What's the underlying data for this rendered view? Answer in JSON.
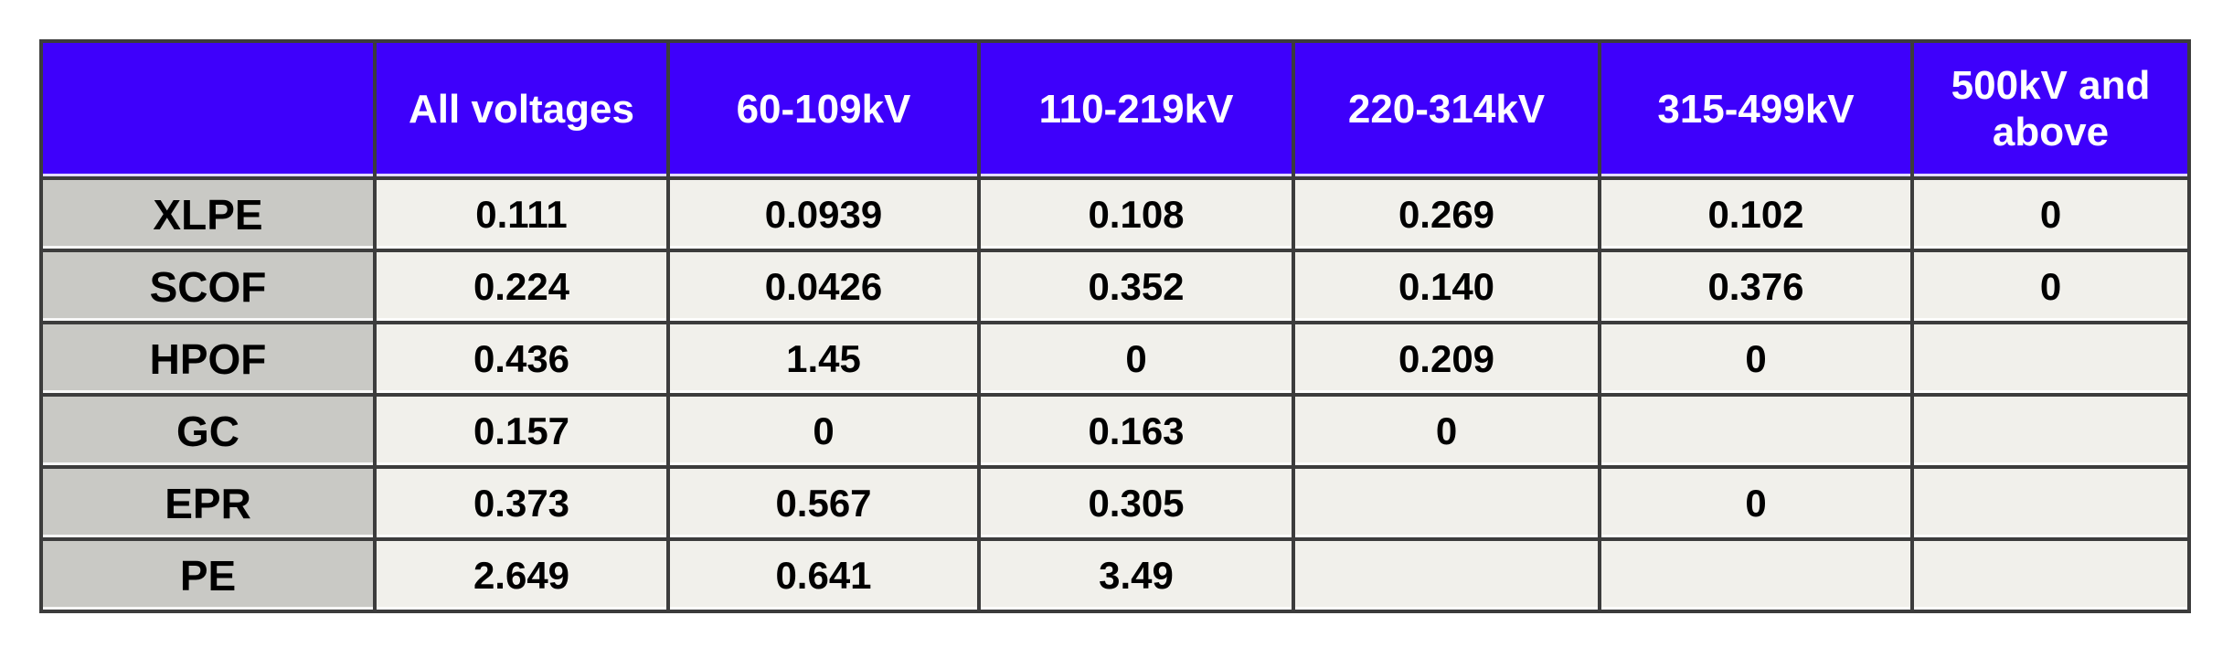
{
  "colors": {
    "header_bg": "#3e00fb",
    "header_text": "#ffffff",
    "row_header_bg": "#c9c9c5",
    "cell_bg": "#f1f0eb",
    "border": "#3c3c3c",
    "cell_text": "#000000"
  },
  "chart_data": {
    "type": "table",
    "columns": [
      "",
      "All voltages",
      "60-109kV",
      "110-219kV",
      "220-314kV",
      "315-499kV",
      "500kV and above"
    ],
    "rows": [
      {
        "label": "XLPE",
        "values": [
          "0.111",
          "0.0939",
          "0.108",
          "0.269",
          "0.102",
          "0"
        ]
      },
      {
        "label": "SCOF",
        "values": [
          "0.224",
          "0.0426",
          "0.352",
          "0.140",
          "0.376",
          "0"
        ]
      },
      {
        "label": "HPOF",
        "values": [
          "0.436",
          "1.45",
          "0",
          "0.209",
          "0",
          ""
        ]
      },
      {
        "label": "GC",
        "values": [
          "0.157",
          "0",
          "0.163",
          "0",
          "",
          ""
        ]
      },
      {
        "label": "EPR",
        "values": [
          "0.373",
          "0.567",
          "0.305",
          "",
          "0",
          ""
        ]
      },
      {
        "label": "PE",
        "values": [
          "2.649",
          "0.641",
          "3.49",
          "",
          "",
          ""
        ]
      }
    ]
  }
}
